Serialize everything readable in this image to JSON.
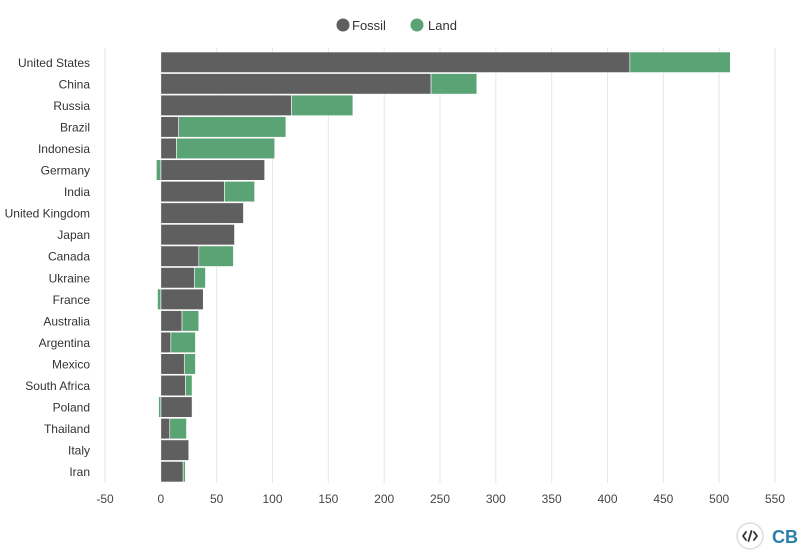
{
  "chart_data": {
    "type": "bar",
    "orientation": "horizontal",
    "stacked": true,
    "categories": [
      "United States",
      "China",
      "Russia",
      "Brazil",
      "Indonesia",
      "Germany",
      "India",
      "United Kingdom",
      "Japan",
      "Canada",
      "Ukraine",
      "France",
      "Australia",
      "Argentina",
      "Mexico",
      "South Africa",
      "Poland",
      "Thailand",
      "Italy",
      "Iran"
    ],
    "series": [
      {
        "name": "Fossil",
        "color": "#5f5f5f",
        "values": [
          420,
          242,
          117,
          16,
          14,
          93,
          57,
          74,
          66,
          34,
          30,
          38,
          19,
          9,
          21,
          22,
          28,
          8,
          25,
          20
        ]
      },
      {
        "name": "Land",
        "color": "#5aa374",
        "values": [
          90,
          41,
          55,
          96,
          88,
          -4,
          27,
          0,
          0,
          31,
          10,
          -3,
          15,
          22,
          10,
          6,
          -2,
          15,
          0,
          2
        ]
      }
    ],
    "xlim": [
      -50,
      550
    ],
    "xticks": [
      -50,
      0,
      50,
      100,
      150,
      200,
      250,
      300,
      350,
      400,
      450,
      500,
      550
    ],
    "title": "",
    "xlabel": "",
    "ylabel": "",
    "legend": {
      "position": "top-center"
    },
    "grid": true
  },
  "branding": {
    "embed_icon": "code-embed-icon",
    "logo_text": "CB"
  }
}
